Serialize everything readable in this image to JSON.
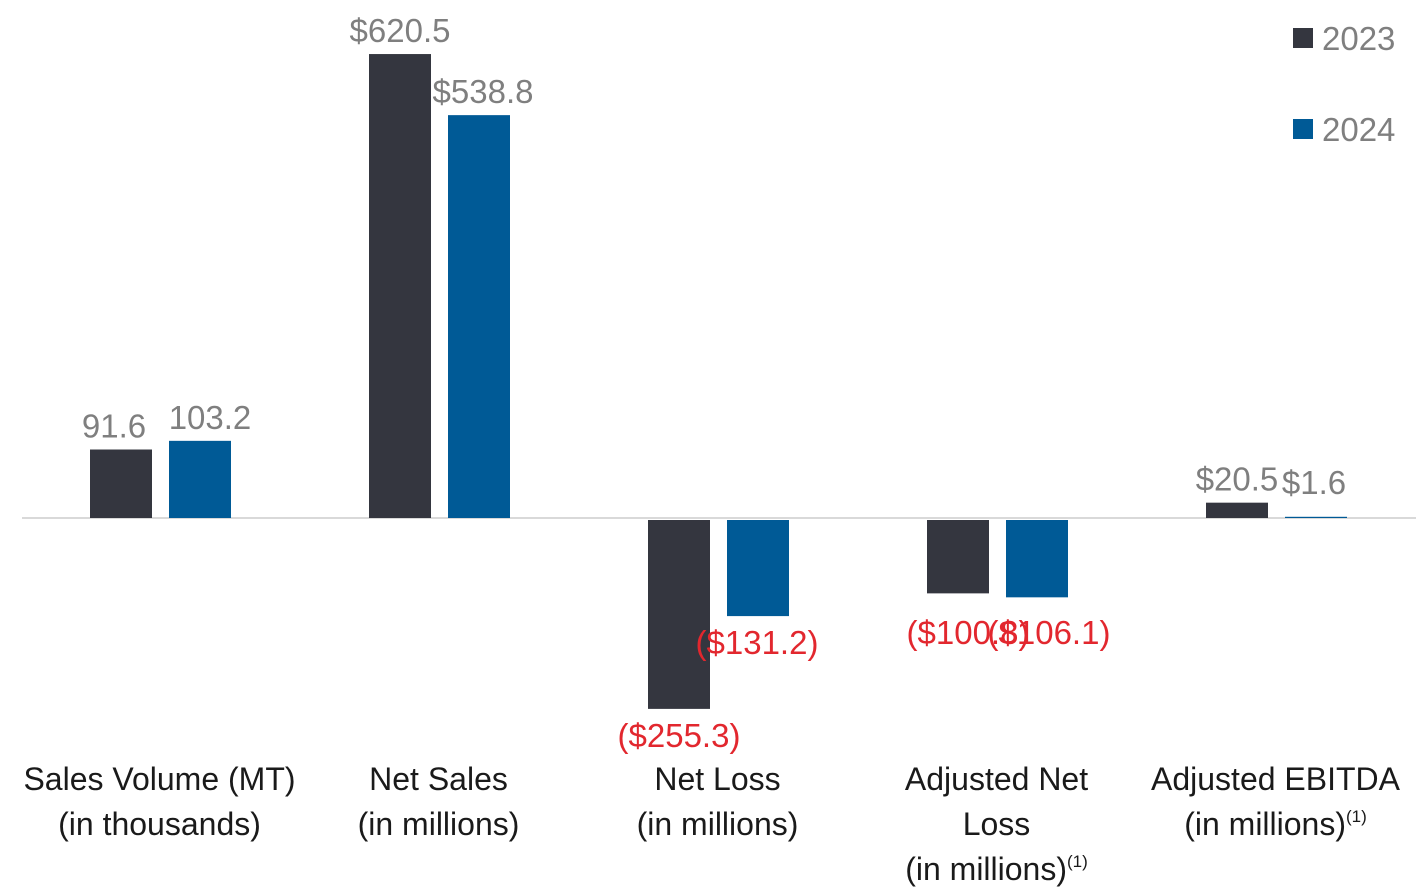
{
  "chart_data": {
    "type": "bar",
    "categories": [
      {
        "lines": [
          "Sales Volume (MT)",
          "(in thousands)"
        ],
        "footnote": ""
      },
      {
        "lines": [
          "Net Sales",
          "(in millions)"
        ],
        "footnote": ""
      },
      {
        "lines": [
          "Net Loss",
          "(in millions)"
        ],
        "footnote": ""
      },
      {
        "lines": [
          "Adjusted Net",
          "Loss",
          "(in millions)"
        ],
        "footnote": "(1)"
      },
      {
        "lines": [
          "Adjusted EBITDA",
          "(in millions)"
        ],
        "footnote": "(1)"
      }
    ],
    "series": [
      {
        "name": "2023",
        "color": "#34363f",
        "values": [
          91.6,
          620.5,
          -255.3,
          -100.8,
          20.5
        ],
        "labels": [
          "91.6",
          "$620.5",
          "($255.3)",
          "($100.8)",
          "$20.5"
        ]
      },
      {
        "name": "2024",
        "color": "#005a96",
        "values": [
          103.2,
          538.8,
          -131.2,
          -106.1,
          1.6
        ],
        "labels": [
          "103.2",
          "$538.8",
          "($131.2)",
          "($106.1)",
          "$1.6"
        ]
      }
    ],
    "legend": {
      "position": "top-right"
    },
    "label_colors": {
      "positive": "#7f7f7f",
      "negative": "#e2272e"
    },
    "baseline_color": "#d9d9d9",
    "axis_color": "#595959",
    "grid": false,
    "ylim": [
      -255.3,
      620.5
    ]
  }
}
